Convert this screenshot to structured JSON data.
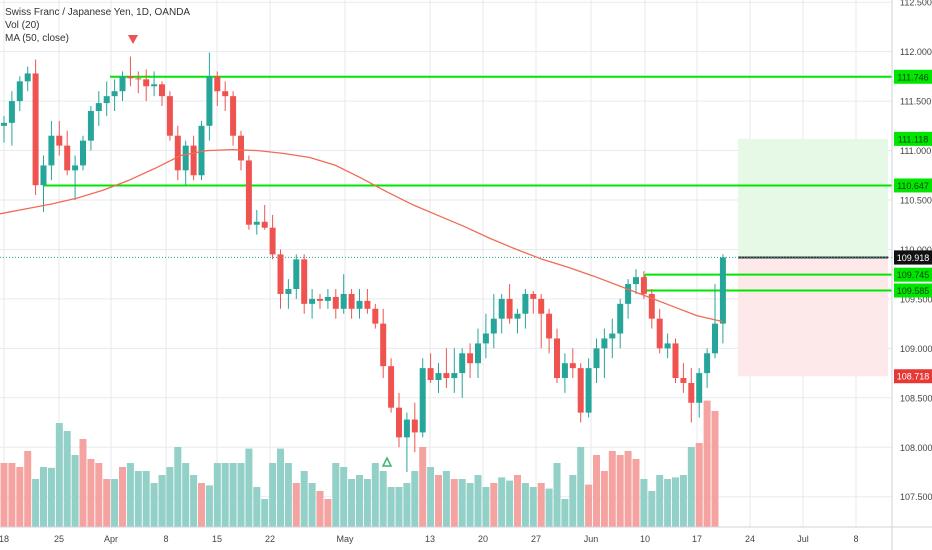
{
  "legend": {
    "title": "Swiss Franc / Japanese Yen, 1D, OANDA",
    "vol": "Vol (20)",
    "ma": "MA (50, close)"
  },
  "colors": {
    "up": "#26a69a",
    "down": "#ef5350",
    "vol_up": "#93d0c8",
    "vol_down": "#f5a3a1",
    "ma": "#f16b55",
    "level": "#00e600",
    "target_zone": "#e6f8e6",
    "stop_zone": "#fde9e9",
    "grid": "#e8eaed",
    "axis_text": "#444444"
  },
  "chart_data": {
    "type": "candlestick",
    "title": "Swiss Franc / Japanese Yen, 1D, OANDA",
    "ylim": [
      107.2,
      112.55
    ],
    "y_ticks": [
      "107.500",
      "108.000",
      "108.500",
      "109.000",
      "109.500",
      "110.000",
      "110.500",
      "111.000",
      "111.500",
      "112.000",
      "112.500"
    ],
    "x_ticks": [
      "18",
      "25",
      "Apr",
      "8",
      "15",
      "22",
      "May",
      "13",
      "20",
      "27",
      "Jun",
      "10",
      "17",
      "24",
      "Jul",
      "8"
    ],
    "candles": [
      [
        111.25,
        111.35,
        111.08,
        111.28
      ],
      [
        111.28,
        111.6,
        111.05,
        111.5
      ],
      [
        111.5,
        111.75,
        111.4,
        111.7
      ],
      [
        111.7,
        111.85,
        111.6,
        111.78
      ],
      [
        111.78,
        111.92,
        110.55,
        110.65
      ],
      [
        110.65,
        110.95,
        110.38,
        110.85
      ],
      [
        110.85,
        111.3,
        110.7,
        111.15
      ],
      [
        111.15,
        111.3,
        110.95,
        111.05
      ],
      [
        111.05,
        111.2,
        110.75,
        110.8
      ],
      [
        110.8,
        110.95,
        110.5,
        110.85
      ],
      [
        110.85,
        111.15,
        110.8,
        111.1
      ],
      [
        111.1,
        111.45,
        111.0,
        111.4
      ],
      [
        111.4,
        111.6,
        111.25,
        111.48
      ],
      [
        111.48,
        111.7,
        111.35,
        111.55
      ],
      [
        111.55,
        111.72,
        111.4,
        111.6
      ],
      [
        111.6,
        111.8,
        111.5,
        111.75
      ],
      [
        111.75,
        111.95,
        111.65,
        111.73
      ],
      [
        111.73,
        111.8,
        111.58,
        111.72
      ],
      [
        111.72,
        111.82,
        111.5,
        111.65
      ],
      [
        111.65,
        111.8,
        111.55,
        111.67
      ],
      [
        111.67,
        111.7,
        111.45,
        111.55
      ],
      [
        111.55,
        111.6,
        111.1,
        111.15
      ],
      [
        111.15,
        111.25,
        110.7,
        110.8
      ],
      [
        110.8,
        111.1,
        110.65,
        111.05
      ],
      [
        111.05,
        111.15,
        110.7,
        110.75
      ],
      [
        110.75,
        111.3,
        110.7,
        111.25
      ],
      [
        111.25,
        111.99,
        111.1,
        111.75
      ],
      [
        111.75,
        111.8,
        111.45,
        111.6
      ],
      [
        111.6,
        111.7,
        111.4,
        111.55
      ],
      [
        111.55,
        111.6,
        111.05,
        111.15
      ],
      [
        111.15,
        111.2,
        110.8,
        110.9
      ],
      [
        110.9,
        110.95,
        110.2,
        110.25
      ],
      [
        110.25,
        110.4,
        110.15,
        110.28
      ],
      [
        110.28,
        110.45,
        110.2,
        110.22
      ],
      [
        110.22,
        110.35,
        109.9,
        109.95
      ],
      [
        109.95,
        110.0,
        109.4,
        109.55
      ],
      [
        109.55,
        109.7,
        109.4,
        109.6
      ],
      [
        109.6,
        109.95,
        109.5,
        109.9
      ],
      [
        109.9,
        109.95,
        109.35,
        109.45
      ],
      [
        109.45,
        109.6,
        109.3,
        109.5
      ],
      [
        109.5,
        109.55,
        109.4,
        109.48
      ],
      [
        109.48,
        109.6,
        109.4,
        109.52
      ],
      [
        109.52,
        109.6,
        109.3,
        109.4
      ],
      [
        109.4,
        109.75,
        109.35,
        109.55
      ],
      [
        109.55,
        109.6,
        109.3,
        109.4
      ],
      [
        109.4,
        109.6,
        109.3,
        109.48
      ],
      [
        109.48,
        109.6,
        109.35,
        109.4
      ],
      [
        109.4,
        109.45,
        109.2,
        109.25
      ],
      [
        109.25,
        109.4,
        108.7,
        108.82
      ],
      [
        108.82,
        108.9,
        108.35,
        108.4
      ],
      [
        108.4,
        108.55,
        108.0,
        108.1
      ],
      [
        108.1,
        108.35,
        107.75,
        108.28
      ],
      [
        108.28,
        108.45,
        107.95,
        108.15
      ],
      [
        108.15,
        108.9,
        108.1,
        108.8
      ],
      [
        108.8,
        108.95,
        108.65,
        108.68
      ],
      [
        108.68,
        108.85,
        108.55,
        108.75
      ],
      [
        108.75,
        109.0,
        108.6,
        108.7
      ],
      [
        108.7,
        109.0,
        108.55,
        108.75
      ],
      [
        108.75,
        109.0,
        108.5,
        108.95
      ],
      [
        108.95,
        109.05,
        108.7,
        108.85
      ],
      [
        108.85,
        109.2,
        108.7,
        109.05
      ],
      [
        109.05,
        109.35,
        108.9,
        109.15
      ],
      [
        109.15,
        109.55,
        109.0,
        109.3
      ],
      [
        109.3,
        109.55,
        109.15,
        109.5
      ],
      [
        109.5,
        109.65,
        109.25,
        109.3
      ],
      [
        109.3,
        109.4,
        109.15,
        109.35
      ],
      [
        109.35,
        109.6,
        109.2,
        109.55
      ],
      [
        109.55,
        109.58,
        109.35,
        109.5
      ],
      [
        109.5,
        109.55,
        109.0,
        109.35
      ],
      [
        109.35,
        109.4,
        108.95,
        109.1
      ],
      [
        109.1,
        109.2,
        108.65,
        108.7
      ],
      [
        108.7,
        108.95,
        108.55,
        108.85
      ],
      [
        108.85,
        109.0,
        108.7,
        108.8
      ],
      [
        108.8,
        108.85,
        108.25,
        108.35
      ],
      [
        108.35,
        108.9,
        108.3,
        108.8
      ],
      [
        108.8,
        109.1,
        108.65,
        109.0
      ],
      [
        109.0,
        109.2,
        108.7,
        109.1
      ],
      [
        109.1,
        109.3,
        108.9,
        109.15
      ],
      [
        109.15,
        109.5,
        109.0,
        109.45
      ],
      [
        109.45,
        109.7,
        109.3,
        109.65
      ],
      [
        109.65,
        109.8,
        109.55,
        109.72
      ],
      [
        109.72,
        109.78,
        109.5,
        109.55
      ],
      [
        109.55,
        109.6,
        109.2,
        109.3
      ],
      [
        109.3,
        109.4,
        108.95,
        109.0
      ],
      [
        109.0,
        109.15,
        108.9,
        109.05
      ],
      [
        109.05,
        109.1,
        108.65,
        108.7
      ],
      [
        108.7,
        108.85,
        108.55,
        108.65
      ],
      [
        108.65,
        108.8,
        108.25,
        108.45
      ],
      [
        108.45,
        108.8,
        108.3,
        108.75
      ],
      [
        108.75,
        109.0,
        108.6,
        108.95
      ],
      [
        108.95,
        109.65,
        108.9,
        109.25
      ],
      [
        109.25,
        109.95,
        109.05,
        109.92
      ]
    ],
    "volume": [
      [
        8,
        0
      ],
      [
        8,
        0
      ],
      [
        7.5,
        0
      ],
      [
        9.5,
        0
      ],
      [
        6,
        1
      ],
      [
        7.5,
        1
      ],
      [
        7.4,
        1
      ],
      [
        13,
        1
      ],
      [
        12,
        1
      ],
      [
        9,
        1
      ],
      [
        11,
        0
      ],
      [
        8.5,
        0
      ],
      [
        8,
        0
      ],
      [
        6,
        0
      ],
      [
        6,
        1
      ],
      [
        7.5,
        0
      ],
      [
        8,
        1
      ],
      [
        7,
        1
      ],
      [
        7,
        1
      ],
      [
        5.5,
        1
      ],
      [
        6.5,
        1
      ],
      [
        7.5,
        1
      ],
      [
        10,
        1
      ],
      [
        8,
        1
      ],
      [
        6.5,
        1
      ],
      [
        5.5,
        0
      ],
      [
        5.2,
        1
      ],
      [
        8,
        1
      ],
      [
        8,
        1
      ],
      [
        8,
        1
      ],
      [
        8,
        1
      ],
      [
        9.8,
        1
      ],
      [
        5,
        1
      ],
      [
        3.5,
        1
      ],
      [
        8,
        1
      ],
      [
        9.8,
        1
      ],
      [
        8,
        1
      ],
      [
        5.5,
        0
      ],
      [
        7,
        1
      ],
      [
        5.5,
        1
      ],
      [
        4.5,
        0
      ],
      [
        3.5,
        0
      ],
      [
        8,
        1
      ],
      [
        7.5,
        1
      ],
      [
        6,
        1
      ],
      [
        6.5,
        1
      ],
      [
        6,
        1
      ],
      [
        8,
        1
      ],
      [
        7,
        1
      ],
      [
        5,
        1
      ],
      [
        5,
        1
      ],
      [
        5.5,
        1
      ],
      [
        7,
        1
      ],
      [
        10,
        0
      ],
      [
        7.5,
        1
      ],
      [
        6.5,
        0
      ],
      [
        7,
        1
      ],
      [
        6,
        0
      ],
      [
        6,
        1
      ],
      [
        5.5,
        1
      ],
      [
        6.5,
        1
      ],
      [
        5,
        1
      ],
      [
        5.5,
        0
      ],
      [
        6.2,
        1
      ],
      [
        5.8,
        1
      ],
      [
        6.5,
        0
      ],
      [
        5.5,
        1
      ],
      [
        5,
        1
      ],
      [
        5.5,
        0
      ],
      [
        4.8,
        1
      ],
      [
        8,
        1
      ],
      [
        3.5,
        1
      ],
      [
        6.5,
        1
      ],
      [
        10,
        1
      ],
      [
        5.3,
        0
      ],
      [
        9,
        0
      ],
      [
        7,
        0
      ],
      [
        9.5,
        0
      ],
      [
        9,
        0
      ],
      [
        9.5,
        0
      ],
      [
        8.5,
        0
      ],
      [
        6,
        1
      ],
      [
        4.5,
        1
      ],
      [
        6.5,
        1
      ],
      [
        6,
        1
      ],
      [
        6.2,
        1
      ],
      [
        6.5,
        1
      ],
      [
        10,
        1
      ],
      [
        10.5,
        0
      ],
      [
        15.8,
        0
      ],
      [
        14.5,
        0
      ]
    ],
    "ma50": [
      110.36,
      110.41,
      110.46,
      110.52,
      110.6,
      110.7,
      110.82,
      110.95,
      111.0,
      111.01,
      111.0,
      110.97,
      110.93,
      110.85,
      110.72,
      110.58,
      110.45,
      110.34,
      110.23,
      110.11,
      110.0,
      109.9,
      109.82,
      109.73,
      109.63,
      109.53,
      109.43,
      109.33,
      109.27
    ],
    "levels": [
      {
        "label": "111.746",
        "value": 111.746,
        "kind": "green"
      },
      {
        "label": "110.647",
        "value": 110.647,
        "kind": "green"
      },
      {
        "label": "109.745",
        "value": 109.745,
        "kind": "green"
      },
      {
        "label": "109.585",
        "value": 109.585,
        "kind": "green"
      }
    ],
    "tags": [
      {
        "label": "112.500",
        "value": 112.5,
        "kind": "axis"
      },
      {
        "label": "111.746",
        "value": 111.746,
        "kind": "green"
      },
      {
        "label": "111.118",
        "value": 111.118,
        "kind": "green"
      },
      {
        "label": "110.647",
        "value": 110.647,
        "kind": "green"
      },
      {
        "label": "109.920",
        "value": 109.92,
        "kind": "dark"
      },
      {
        "label": "109.918",
        "value": 109.918,
        "kind": "black"
      },
      {
        "label": "109.745",
        "value": 109.745,
        "kind": "green"
      },
      {
        "label": "109.585",
        "value": 109.585,
        "kind": "green"
      },
      {
        "label": "108.718",
        "value": 108.718,
        "kind": "red"
      }
    ],
    "position": {
      "entry": 109.918,
      "target": 111.118,
      "stop": 108.718
    },
    "last_price": 109.92
  }
}
